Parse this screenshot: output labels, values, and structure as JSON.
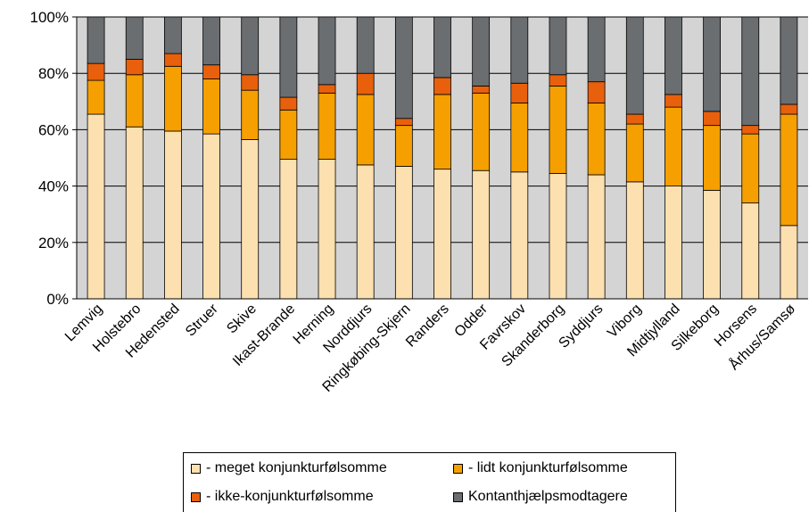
{
  "colors": {
    "plot_background": "#d4d4d4",
    "meget": "#fde0b0",
    "lidt": "#f5a000",
    "ikke": "#e8600c",
    "kontant": "#6a6e71"
  },
  "chart_data": {
    "type": "bar",
    "stacked": true,
    "percent": true,
    "title": "",
    "xlabel": "",
    "ylabel": "",
    "ylim": [
      0,
      100
    ],
    "yticks": [
      "0%",
      "20%",
      "40%",
      "60%",
      "80%",
      "100%"
    ],
    "grid": true,
    "legend_position": "bottom",
    "categories": [
      "Lemvig",
      "Holstebro",
      "Hedensted",
      "Struer",
      "Skive",
      "Ikast-Brande",
      "Herning",
      "Norddjurs",
      "Ringkøbing-Skjern",
      "Randers",
      "Odder",
      "Favrskov",
      "Skanderborg",
      "Syddjurs",
      "Viborg",
      "Midtjylland",
      "Silkeborg",
      "Horsens",
      "Århus/Samsø"
    ],
    "series": [
      {
        "name": "- meget konjunkturfølsomme",
        "values": [
          65.5,
          61,
          59.5,
          58.5,
          56.5,
          49.5,
          49.5,
          47.5,
          47,
          46,
          45.5,
          45,
          44.5,
          44,
          41.5,
          40,
          38.5,
          34,
          26
        ]
      },
      {
        "name": "- lidt konjunkturfølsomme",
        "values": [
          12,
          18.5,
          23,
          19.5,
          17.5,
          17.5,
          23.5,
          25,
          14.5,
          26.5,
          27.5,
          24.5,
          31,
          25.5,
          20.5,
          28,
          23,
          24.5,
          39.5
        ]
      },
      {
        "name": "- ikke-konjunkturfølsomme",
        "values": [
          6,
          5.5,
          4.5,
          5,
          5.5,
          4.5,
          3,
          7.5,
          2.5,
          6,
          2.5,
          7,
          4,
          7.5,
          3.5,
          4.5,
          5,
          3,
          3.5
        ]
      },
      {
        "name": "Kontanthjælpsmodtagere",
        "values": [
          16.5,
          15,
          13,
          17,
          20.5,
          28.5,
          24,
          20,
          36,
          21.5,
          24.5,
          23.5,
          20.5,
          23,
          34.5,
          27.5,
          33.5,
          38.5,
          31
        ]
      }
    ]
  }
}
